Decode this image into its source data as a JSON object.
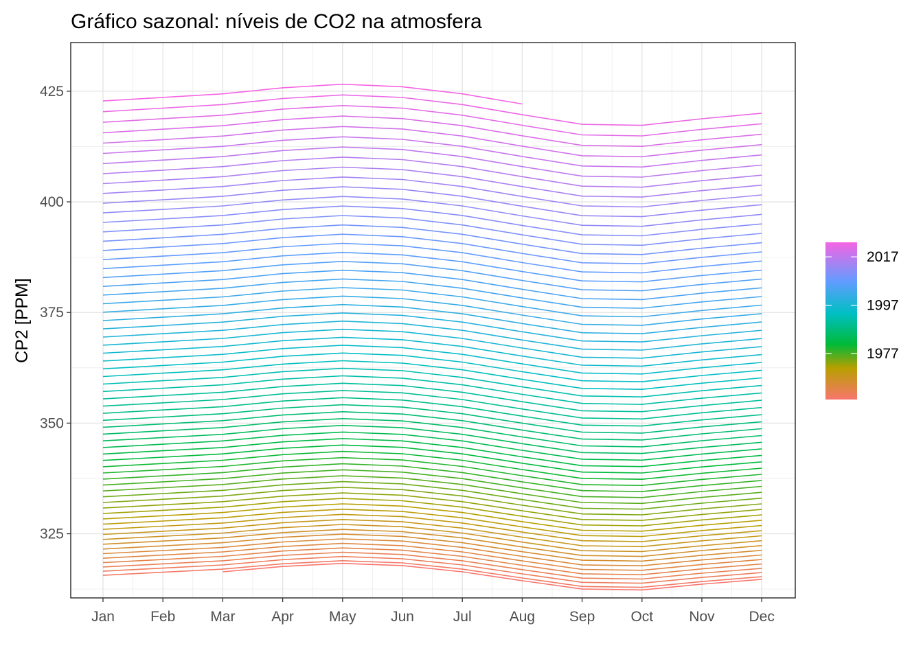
{
  "chart_data": {
    "type": "line",
    "title": "Gráfico sazonal: níveis de CO2 na atmosfera",
    "xlabel": "",
    "ylabel": "CP2 [PPM]",
    "categories": [
      "Jan",
      "Feb",
      "Mar",
      "Apr",
      "May",
      "Jun",
      "Jul",
      "Aug",
      "Sep",
      "Oct",
      "Nov",
      "Dec"
    ],
    "y_ticks": [
      325,
      350,
      375,
      400,
      425
    ],
    "ylim": [
      310.5,
      436
    ],
    "grid": true,
    "legend": {
      "placement": "right",
      "type": "colorbar",
      "labels": [
        "2017",
        "1997",
        "1977"
      ],
      "year_range": [
        1958,
        2023
      ]
    },
    "series_model": {
      "description_of_values": "one line per year; monthly CO2 ppm",
      "first_year": 1958,
      "last_year": 2023,
      "first_full_year_jan": 315.6,
      "final_year_jan": 422.8,
      "seasonal_offsets": [
        0.0,
        0.7,
        1.4,
        2.6,
        3.3,
        2.8,
        1.4,
        -0.6,
        -2.5,
        -2.7,
        -1.4,
        -0.3
      ],
      "missing_months": {
        "1958": [
          "Jan",
          "Feb"
        ],
        "2023": [
          "Sep",
          "Oct",
          "Nov",
          "Dec"
        ]
      }
    }
  }
}
